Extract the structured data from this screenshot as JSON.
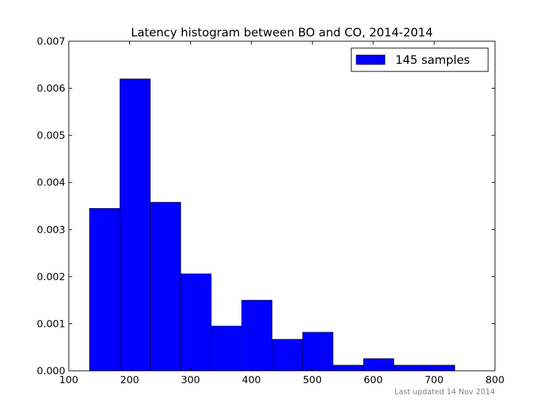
{
  "chart_data": {
    "type": "bar",
    "title": "Latency histogram between BO and CO, 2014-2014",
    "xlabel": "",
    "ylabel": "",
    "xlim": [
      100,
      800
    ],
    "ylim": [
      0,
      0.007
    ],
    "x_ticks": [
      "100",
      "200",
      "300",
      "400",
      "500",
      "600",
      "700",
      "800"
    ],
    "y_ticks": [
      "0.000",
      "0.001",
      "0.002",
      "0.003",
      "0.004",
      "0.005",
      "0.006",
      "0.007"
    ],
    "bin_edges": [
      134,
      184,
      234,
      284,
      334,
      384,
      434,
      484,
      534,
      584,
      634,
      684,
      734
    ],
    "values": [
      0.00345,
      0.0062,
      0.00358,
      0.00206,
      0.00095,
      0.0015,
      0.00067,
      0.00082,
      0.00012,
      0.00026,
      0.00012,
      0.00012
    ],
    "series": [
      {
        "name": "145 samples",
        "color": "#0000ff"
      }
    ],
    "legend_position": "top-right",
    "grid": false
  },
  "footer": {
    "text": "Last updated 14 Nov 2014"
  }
}
